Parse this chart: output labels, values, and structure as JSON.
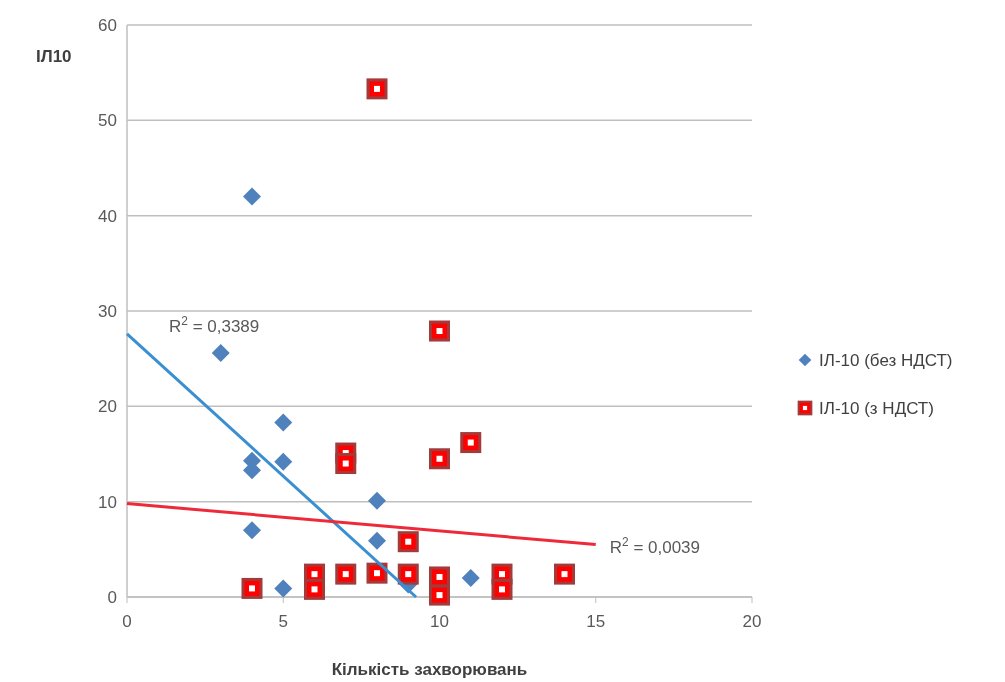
{
  "chart_data": {
    "type": "scatter",
    "xlabel": "Кількість захворювань",
    "ylabel": "ІЛ10",
    "xlim": [
      0,
      20
    ],
    "xticks": [
      0,
      5,
      10,
      15,
      20
    ],
    "ylim": [
      0,
      60
    ],
    "yticks": [
      0,
      10,
      20,
      30,
      40,
      50,
      60
    ],
    "grid": "y",
    "legend": "right",
    "series": [
      {
        "name": "ІЛ-10 (без НДСТ)",
        "color": "#4f81bd",
        "marker": "diamond",
        "x": [
          4,
          3,
          5,
          4,
          4,
          5,
          8,
          4,
          8,
          5,
          11,
          9
        ],
        "values": [
          42,
          25.6,
          18.3,
          14.3,
          13.3,
          14.2,
          10.1,
          7,
          5.9,
          0.9,
          2,
          1.3
        ]
      },
      {
        "name": "ІЛ-10 (з НДСТ)",
        "color": "#ff0000",
        "marker": "square",
        "x": [
          8,
          10,
          11,
          10,
          7,
          7,
          9,
          4,
          6,
          6,
          7,
          8,
          9,
          10,
          10,
          12,
          12,
          14
        ],
        "values": [
          53.3,
          27.9,
          16.2,
          14.5,
          15.1,
          14,
          5.8,
          0.9,
          2.4,
          0.8,
          2.4,
          2.5,
          2.4,
          2.1,
          0.2,
          2.4,
          0.8,
          2.4
        ]
      },
      {
        "type": "line",
        "color": "#3a8fd0",
        "marker": "none",
        "x": [
          0,
          9.25
        ],
        "values": [
          27.6,
          0
        ]
      },
      {
        "type": "line",
        "color": "#ee2a3a",
        "marker": "none",
        "x": [
          0,
          15
        ],
        "values": [
          9.8,
          5.5
        ]
      }
    ],
    "annotations": [
      "R$^{2}$ = 0,3389",
      "R$^{2}$ = 0,0039"
    ]
  }
}
